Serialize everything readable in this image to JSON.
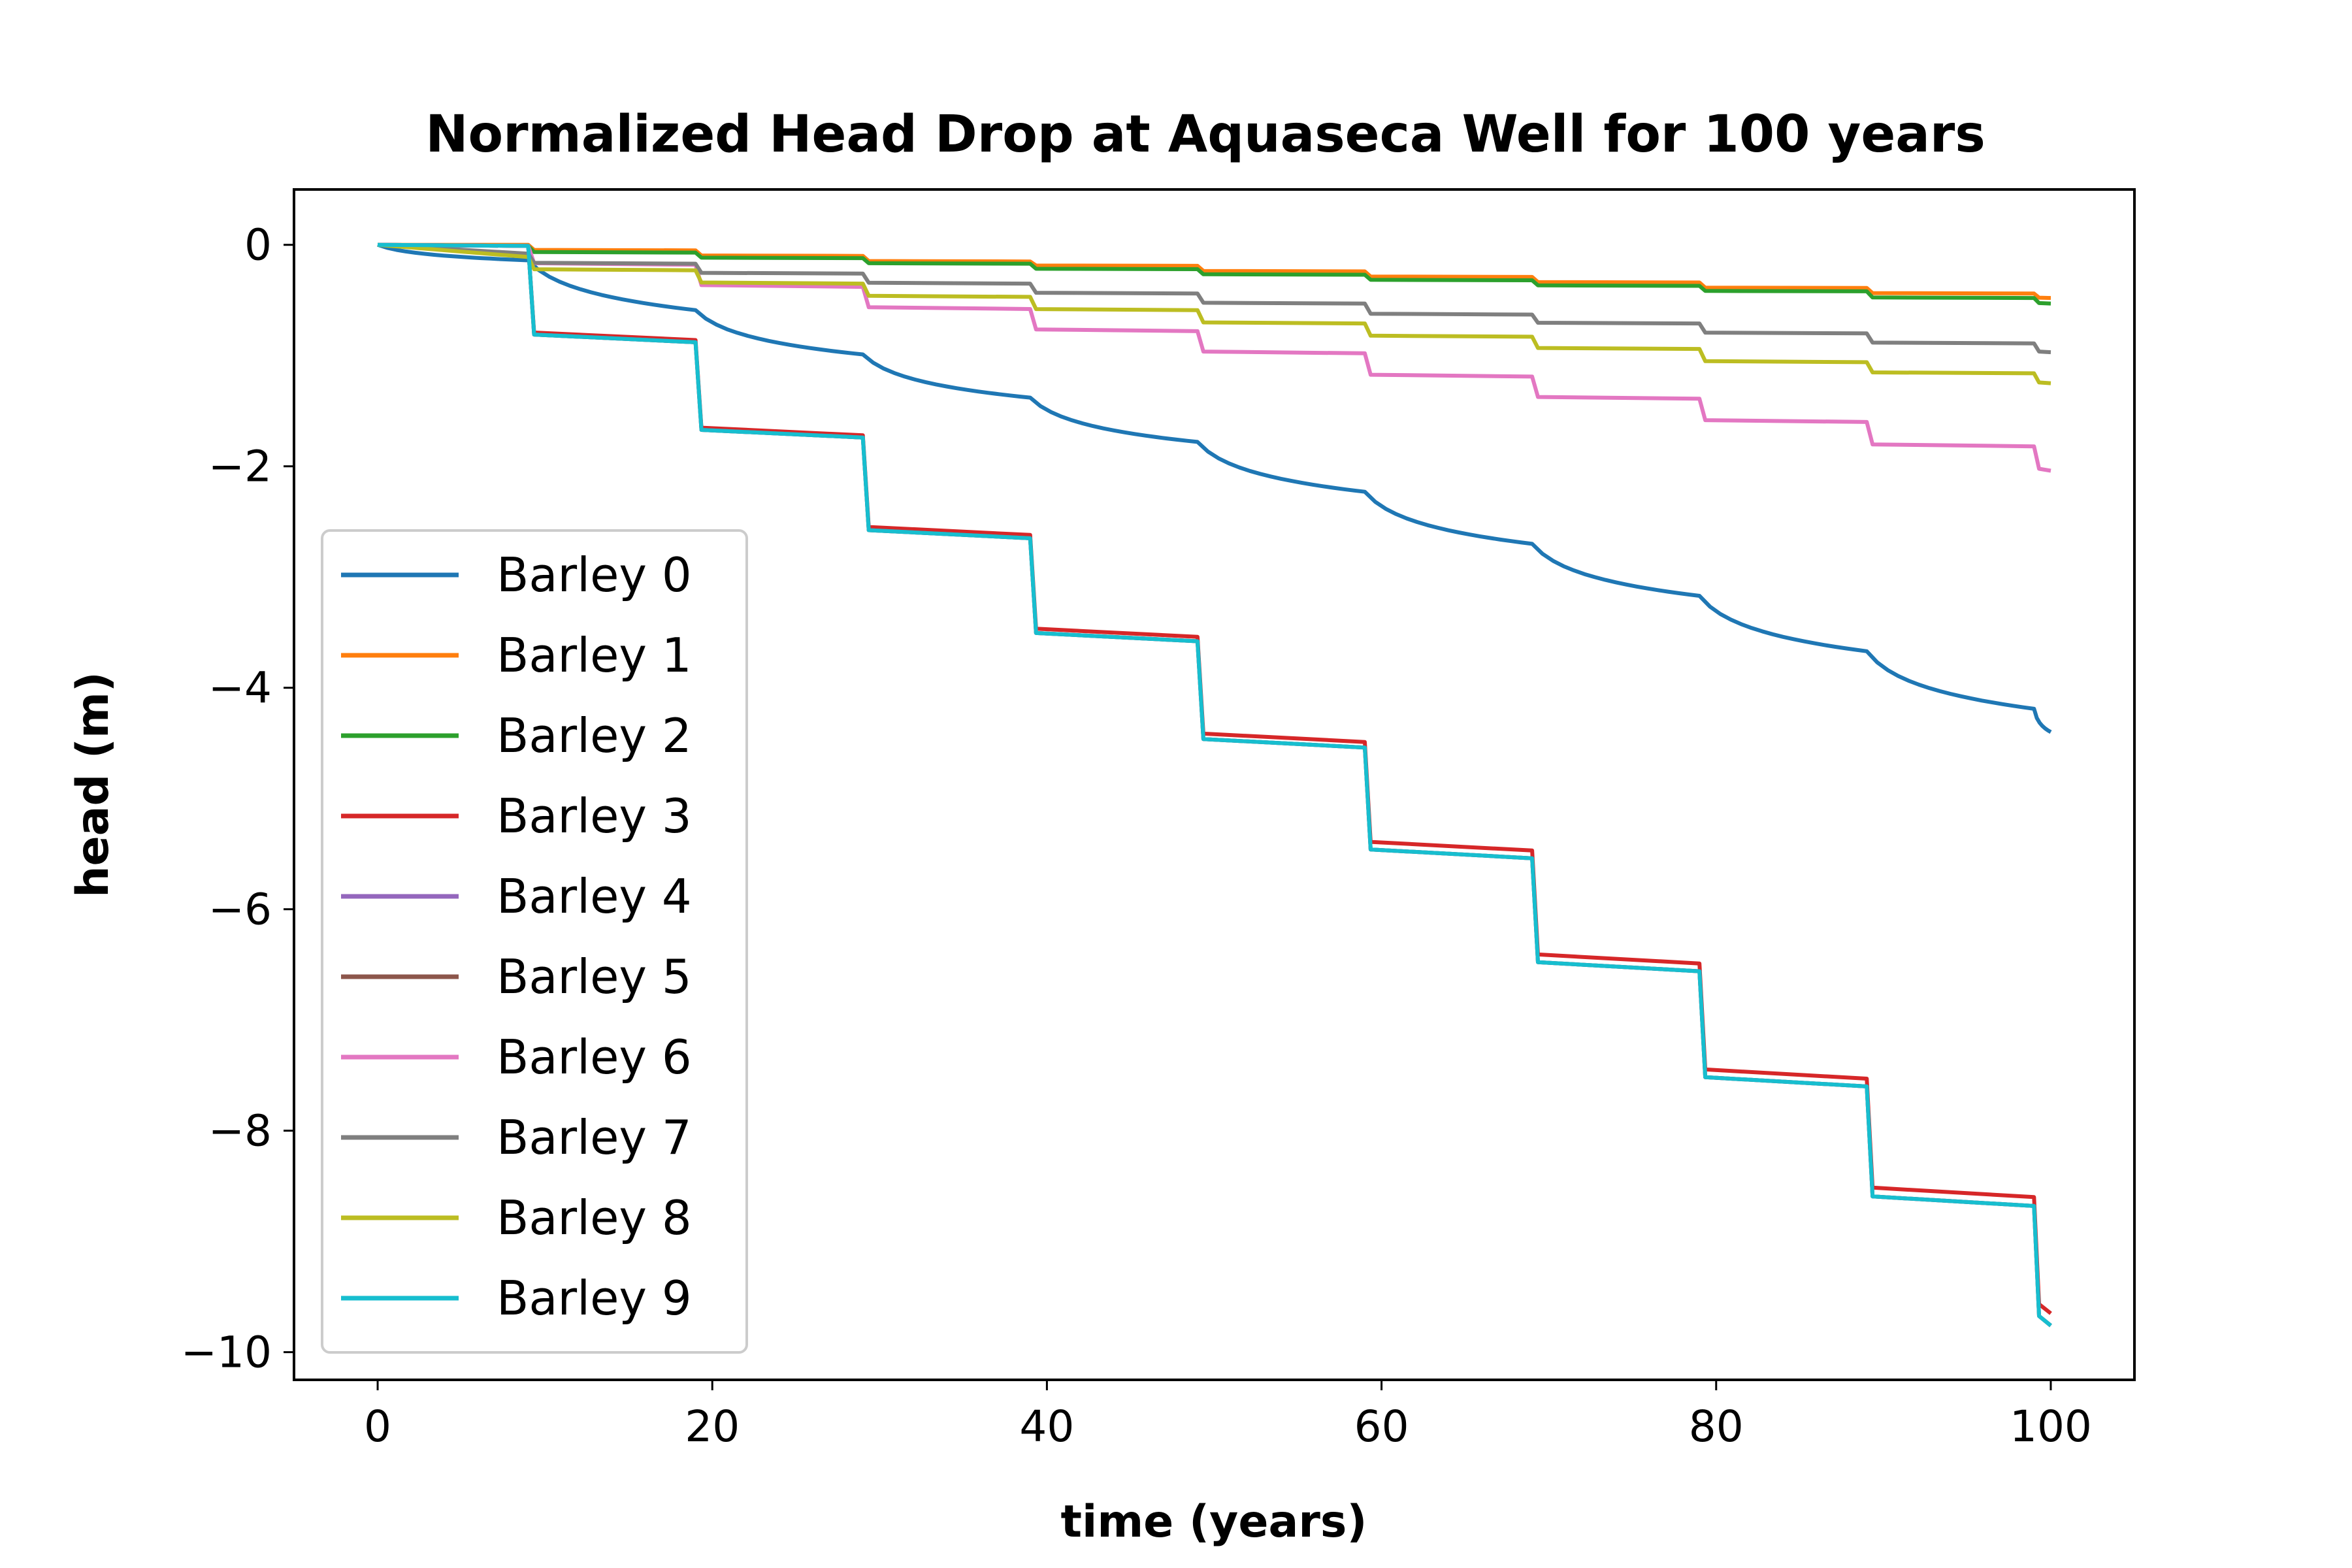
{
  "chart_data": {
    "type": "line",
    "title": "Normalized Head Drop at Aquaseca Well for 100 years",
    "xlabel": "time (years)",
    "ylabel": "head (m)",
    "xlim": [
      -5,
      105
    ],
    "ylim": [
      -10.25,
      0.5
    ],
    "xticks": [
      0,
      20,
      40,
      60,
      80,
      100
    ],
    "yticks": [
      0,
      -2,
      -4,
      -6,
      -8,
      -10
    ],
    "xtick_labels": [
      "0",
      "20",
      "40",
      "60",
      "80",
      "100"
    ],
    "ytick_labels": [
      "0",
      "−2",
      "−4",
      "−6",
      "−8",
      "−10"
    ],
    "grid": false,
    "legend_position": "lower-left",
    "step_times": [
      9,
      19,
      29,
      39,
      49,
      59,
      69,
      79,
      89,
      99
    ],
    "series": [
      {
        "name": "Barley 0",
        "color": "#1f77b4",
        "shape": "curve",
        "start": [
          0,
          0
        ],
        "step_end": [
          -0.14,
          -0.59,
          -0.99,
          -1.38,
          -1.78,
          -2.23,
          -2.7,
          -3.17,
          -3.67,
          -4.19
        ],
        "final": [
          100,
          -4.4
        ]
      },
      {
        "name": "Barley 1",
        "color": "#ff7f0e",
        "shape": "step",
        "start": [
          0,
          0
        ],
        "step_end": [
          0,
          -0.05,
          -0.1,
          -0.15,
          -0.19,
          -0.24,
          -0.29,
          -0.34,
          -0.39,
          -0.44
        ],
        "final": [
          100,
          -0.48
        ]
      },
      {
        "name": "Barley 2",
        "color": "#2ca02c",
        "shape": "step",
        "start": [
          0,
          0
        ],
        "step_end": [
          -0.01,
          -0.07,
          -0.12,
          -0.17,
          -0.22,
          -0.27,
          -0.32,
          -0.37,
          -0.42,
          -0.48
        ],
        "final": [
          100,
          -0.53
        ]
      },
      {
        "name": "Barley 3",
        "color": "#d62728",
        "shape": "step",
        "start": [
          0,
          0
        ],
        "step_end": [
          -0.01,
          -0.86,
          -1.72,
          -2.62,
          -3.54,
          -4.49,
          -5.47,
          -6.49,
          -7.53,
          -8.6
        ],
        "final": [
          100,
          -9.65
        ]
      },
      {
        "name": "Barley 4",
        "color": "#9467bd",
        "shape": "step",
        "start": [
          0,
          0
        ],
        "step_end": [
          -0.01,
          -0.88,
          -1.74,
          -2.65,
          -3.58,
          -4.54,
          -5.54,
          -6.56,
          -7.6,
          -8.68
        ],
        "final": [
          100,
          -9.76
        ]
      },
      {
        "name": "Barley 5",
        "color": "#8c564b",
        "shape": "step",
        "start": [
          0,
          0
        ],
        "step_end": [
          -0.01,
          -0.88,
          -1.74,
          -2.65,
          -3.58,
          -4.54,
          -5.54,
          -6.56,
          -7.6,
          -8.68
        ],
        "final": [
          100,
          -9.76
        ]
      },
      {
        "name": "Barley 6",
        "color": "#e377c2",
        "shape": "step",
        "start": [
          0,
          0
        ],
        "step_end": [
          -0.01,
          -0.18,
          -0.38,
          -0.58,
          -0.78,
          -0.98,
          -1.19,
          -1.39,
          -1.6,
          -1.82
        ],
        "final": [
          100,
          -2.04
        ]
      },
      {
        "name": "Barley 7",
        "color": "#7f7f7f",
        "shape": "step",
        "start": [
          0,
          0
        ],
        "step_end": [
          -0.08,
          -0.17,
          -0.26,
          -0.35,
          -0.44,
          -0.53,
          -0.63,
          -0.71,
          -0.8,
          -0.89
        ],
        "final": [
          100,
          -0.97
        ]
      },
      {
        "name": "Barley 8",
        "color": "#bcbd22",
        "shape": "step",
        "start": [
          0,
          0
        ],
        "step_end": [
          -0.11,
          -0.23,
          -0.35,
          -0.47,
          -0.59,
          -0.71,
          -0.83,
          -0.94,
          -1.06,
          -1.16
        ],
        "final": [
          100,
          -1.25
        ]
      },
      {
        "name": "Barley 9",
        "color": "#17becf",
        "shape": "step",
        "start": [
          0,
          0
        ],
        "step_end": [
          -0.01,
          -0.88,
          -1.74,
          -2.65,
          -3.58,
          -4.54,
          -5.54,
          -6.56,
          -7.6,
          -8.68
        ],
        "final": [
          100,
          -9.76
        ]
      }
    ]
  }
}
